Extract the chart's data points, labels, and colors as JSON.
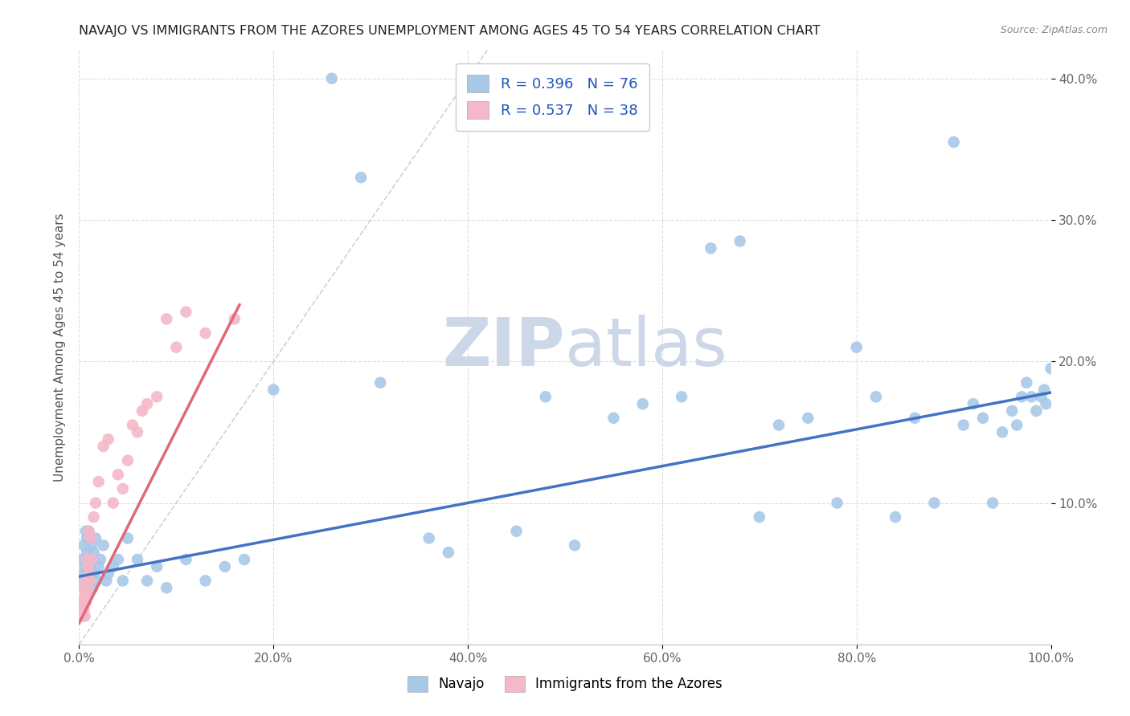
{
  "title": "NAVAJO VS IMMIGRANTS FROM THE AZORES UNEMPLOYMENT AMONG AGES 45 TO 54 YEARS CORRELATION CHART",
  "source": "Source: ZipAtlas.com",
  "ylabel": "Unemployment Among Ages 45 to 54 years",
  "xlim": [
    0,
    1.0
  ],
  "ylim": [
    0,
    0.42
  ],
  "xticks": [
    0.0,
    0.2,
    0.4,
    0.6,
    0.8,
    1.0
  ],
  "yticks": [
    0.1,
    0.2,
    0.3,
    0.4
  ],
  "xticklabels": [
    "0.0%",
    "20.0%",
    "40.0%",
    "60.0%",
    "80.0%",
    "100.0%"
  ],
  "yticklabels": [
    "10.0%",
    "20.0%",
    "30.0%",
    "40.0%"
  ],
  "navajo_R": "R = 0.396",
  "navajo_N": "N = 76",
  "azores_R": "R = 0.537",
  "azores_N": "N = 38",
  "navajo_color": "#a8c8e8",
  "navajo_line_color": "#4472c4",
  "azores_color": "#f4b8c8",
  "azores_line_color": "#e06878",
  "diagonal_color": "#cccccc",
  "background_color": "#ffffff",
  "navajo_x": [
    0.003,
    0.004,
    0.005,
    0.005,
    0.006,
    0.007,
    0.007,
    0.008,
    0.008,
    0.009,
    0.01,
    0.01,
    0.011,
    0.012,
    0.013,
    0.014,
    0.015,
    0.016,
    0.017,
    0.018,
    0.02,
    0.022,
    0.025,
    0.028,
    0.03,
    0.035,
    0.04,
    0.045,
    0.05,
    0.06,
    0.07,
    0.08,
    0.09,
    0.11,
    0.13,
    0.15,
    0.17,
    0.2,
    0.26,
    0.29,
    0.31,
    0.36,
    0.38,
    0.45,
    0.48,
    0.51,
    0.55,
    0.58,
    0.62,
    0.65,
    0.68,
    0.7,
    0.72,
    0.75,
    0.78,
    0.8,
    0.82,
    0.84,
    0.86,
    0.88,
    0.9,
    0.91,
    0.92,
    0.93,
    0.94,
    0.95,
    0.96,
    0.965,
    0.97,
    0.975,
    0.98,
    0.985,
    0.99,
    0.993,
    0.995,
    1.0
  ],
  "navajo_y": [
    0.06,
    0.05,
    0.045,
    0.07,
    0.055,
    0.08,
    0.04,
    0.065,
    0.075,
    0.05,
    0.06,
    0.08,
    0.045,
    0.055,
    0.07,
    0.04,
    0.065,
    0.05,
    0.075,
    0.045,
    0.055,
    0.06,
    0.07,
    0.045,
    0.05,
    0.055,
    0.06,
    0.045,
    0.075,
    0.06,
    0.045,
    0.055,
    0.04,
    0.06,
    0.045,
    0.055,
    0.06,
    0.18,
    0.4,
    0.33,
    0.185,
    0.075,
    0.065,
    0.08,
    0.175,
    0.07,
    0.16,
    0.17,
    0.175,
    0.28,
    0.285,
    0.09,
    0.155,
    0.16,
    0.1,
    0.21,
    0.175,
    0.09,
    0.16,
    0.1,
    0.355,
    0.155,
    0.17,
    0.16,
    0.1,
    0.15,
    0.165,
    0.155,
    0.175,
    0.185,
    0.175,
    0.165,
    0.175,
    0.18,
    0.17,
    0.195
  ],
  "azores_x": [
    0.002,
    0.003,
    0.004,
    0.004,
    0.005,
    0.005,
    0.006,
    0.006,
    0.007,
    0.007,
    0.008,
    0.008,
    0.009,
    0.009,
    0.01,
    0.01,
    0.011,
    0.012,
    0.013,
    0.015,
    0.017,
    0.02,
    0.025,
    0.03,
    0.035,
    0.04,
    0.045,
    0.05,
    0.055,
    0.06,
    0.065,
    0.07,
    0.08,
    0.09,
    0.1,
    0.11,
    0.13,
    0.16
  ],
  "azores_y": [
    0.03,
    0.025,
    0.03,
    0.02,
    0.04,
    0.025,
    0.035,
    0.02,
    0.045,
    0.03,
    0.035,
    0.06,
    0.04,
    0.055,
    0.05,
    0.08,
    0.045,
    0.075,
    0.06,
    0.09,
    0.1,
    0.115,
    0.14,
    0.145,
    0.1,
    0.12,
    0.11,
    0.13,
    0.155,
    0.15,
    0.165,
    0.17,
    0.175,
    0.23,
    0.21,
    0.235,
    0.22,
    0.23
  ],
  "navajo_trend_x": [
    0.0,
    1.0
  ],
  "navajo_trend_y": [
    0.048,
    0.178
  ],
  "azores_trend_x": [
    0.0,
    0.165
  ],
  "azores_trend_y": [
    0.015,
    0.24
  ]
}
